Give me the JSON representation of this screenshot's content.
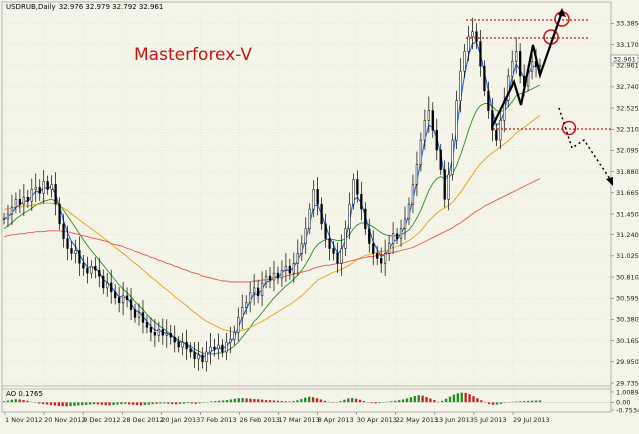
{
  "chart_data": [
    {
      "type": "candlestick",
      "title": "USDRUB,Daily",
      "ohlc_readout": "32.976 32.979 32.792 32.961",
      "watermark": "Masterforex-V",
      "current_price": "32.961",
      "y_ticks": [
        "33.385",
        "33.170",
        "32.961",
        "32.740",
        "32.525",
        "32.310",
        "32.095",
        "31.880",
        "31.665",
        "31.450",
        "31.240",
        "31.025",
        "30.810",
        "30.595",
        "30.380",
        "30.165",
        "29.950",
        "29.735"
      ],
      "ylim": [
        29.735,
        33.5
      ],
      "x_ticks": [
        "1 Nov 2012",
        "20 Nov 2012",
        "9 Dec 2012",
        "28 Dec 2012",
        "20 Jan 2013",
        "7 Feb 2013",
        "26 Feb 2013",
        "17 Mar 2013",
        "8 Apr 2013",
        "30 Apr 2013",
        "22 May 2013",
        "13 Jun 2013",
        "5 Jul 2013",
        "29 Jul 2013"
      ],
      "series": [
        {
          "kind": "price",
          "color": "#000000",
          "values": [
            31.4,
            31.45,
            31.52,
            31.6,
            31.55,
            31.62,
            31.58,
            31.7,
            31.72,
            31.66,
            31.78,
            31.7,
            31.75,
            31.55,
            31.35,
            31.2,
            31.1,
            31.05,
            31.08,
            30.95,
            30.9,
            30.85,
            30.92,
            30.88,
            30.82,
            30.7,
            30.75,
            30.66,
            30.6,
            30.55,
            30.62,
            30.58,
            30.48,
            30.4,
            30.45,
            30.35,
            30.3,
            30.25,
            30.22,
            30.28,
            30.22,
            30.24,
            30.2,
            30.15,
            30.1,
            30.15,
            30.08,
            30.05,
            29.98,
            30.02,
            29.95,
            30.05,
            30.1,
            30.08,
            30.12,
            30.05,
            30.15,
            30.18,
            30.25,
            30.4,
            30.5,
            30.55,
            30.65,
            30.7,
            30.62,
            30.75,
            30.82,
            30.78,
            30.85,
            30.8,
            30.88,
            30.92,
            30.85,
            30.95,
            31.05,
            31.15,
            31.3,
            31.5,
            31.7,
            31.55,
            31.35,
            31.2,
            31.1,
            31.05,
            30.95,
            31.1,
            31.3,
            31.55,
            31.8,
            31.65,
            31.5,
            31.3,
            31.15,
            31.05,
            31.0,
            30.95,
            31.05,
            31.15,
            31.25,
            31.2,
            31.3,
            31.4,
            31.55,
            31.75,
            31.95,
            32.2,
            32.4,
            32.5,
            32.3,
            32.1,
            31.9,
            31.6,
            31.85,
            32.2,
            32.6,
            32.9,
            33.1,
            33.25,
            33.3,
            33.2,
            32.95,
            32.7,
            32.5,
            32.3,
            32.2,
            32.4,
            32.6,
            32.85,
            33.0,
            33.1,
            32.85,
            32.75,
            32.9,
            33.0,
            32.95,
            32.96
          ]
        },
        {
          "kind": "ema-fast",
          "color": "#1e64dc",
          "values": [
            31.4,
            31.42,
            31.46,
            31.52,
            31.54,
            31.58,
            31.58,
            31.63,
            31.68,
            31.67,
            31.72,
            31.71,
            31.73,
            31.65,
            31.52,
            31.38,
            31.26,
            31.17,
            31.12,
            31.04,
            30.97,
            30.91,
            30.91,
            30.9,
            30.86,
            30.78,
            30.76,
            30.71,
            30.66,
            30.61,
            30.61,
            30.6,
            30.54,
            30.47,
            30.46,
            30.41,
            30.36,
            30.31,
            30.27,
            30.27,
            30.25,
            30.24,
            30.22,
            30.19,
            30.15,
            30.15,
            30.12,
            30.09,
            30.04,
            30.03,
            29.99,
            30.02,
            30.06,
            30.07,
            30.1,
            30.08,
            30.11,
            30.15,
            30.2,
            30.3,
            30.4,
            30.48,
            30.57,
            30.64,
            30.63,
            30.69,
            30.76,
            30.77,
            30.81,
            30.81,
            30.85,
            30.89,
            30.87,
            30.91,
            30.98,
            31.07,
            31.19,
            31.35,
            31.53,
            31.54,
            31.45,
            31.33,
            31.22,
            31.14,
            31.05,
            31.08,
            31.19,
            31.37,
            31.59,
            31.62,
            31.56,
            31.43,
            31.29,
            31.17,
            31.09,
            31.02,
            31.04,
            31.09,
            31.17,
            31.19,
            31.25,
            31.33,
            31.44,
            31.6,
            31.78,
            31.99,
            32.2,
            32.35,
            32.33,
            32.22,
            32.06,
            31.83,
            31.84,
            32.02,
            32.31,
            32.61,
            32.86,
            33.06,
            33.18,
            33.19,
            33.07,
            32.89,
            32.7,
            32.5,
            32.35,
            32.38,
            32.49,
            32.67,
            32.84,
            32.97,
            32.91,
            32.83,
            32.87,
            32.94,
            32.95,
            32.96
          ]
        },
        {
          "kind": "ma-green",
          "color": "#2a8a2a",
          "values": [
            31.3,
            31.33,
            31.36,
            31.4,
            31.43,
            31.46,
            31.48,
            31.51,
            31.54,
            31.56,
            31.58,
            31.59,
            31.6,
            31.58,
            31.54,
            31.49,
            31.43,
            31.37,
            31.31,
            31.25,
            31.19,
            31.13,
            31.08,
            31.03,
            30.98,
            30.93,
            30.88,
            30.83,
            30.78,
            30.73,
            30.69,
            30.65,
            30.61,
            30.56,
            30.52,
            30.48,
            30.43,
            30.39,
            30.35,
            30.32,
            30.29,
            30.26,
            30.23,
            30.2,
            30.17,
            30.15,
            30.13,
            30.11,
            30.08,
            30.06,
            30.04,
            30.03,
            30.03,
            30.03,
            30.04,
            30.04,
            30.06,
            30.08,
            30.11,
            30.15,
            30.2,
            30.25,
            30.3,
            30.36,
            30.4,
            30.45,
            30.5,
            30.55,
            30.6,
            30.64,
            30.68,
            30.72,
            30.75,
            30.79,
            30.83,
            30.88,
            30.94,
            31.01,
            31.09,
            31.14,
            31.17,
            31.19,
            31.19,
            31.19,
            31.18,
            31.18,
            31.2,
            31.24,
            31.3,
            31.34,
            31.36,
            31.36,
            31.34,
            31.32,
            31.29,
            31.26,
            31.24,
            31.23,
            31.23,
            31.23,
            31.24,
            31.26,
            31.29,
            31.34,
            31.41,
            31.49,
            31.59,
            31.69,
            31.76,
            31.81,
            31.83,
            31.81,
            31.82,
            31.86,
            31.94,
            32.05,
            32.17,
            32.3,
            32.41,
            32.5,
            32.55,
            32.57,
            32.57,
            32.54,
            32.5,
            32.49,
            32.5,
            32.54,
            32.59,
            32.65,
            32.67,
            32.68,
            32.7,
            32.72,
            32.74,
            32.76
          ]
        },
        {
          "kind": "ma-orange",
          "color": "#e8a010",
          "values": [
            31.5,
            31.5,
            31.51,
            31.52,
            31.52,
            31.53,
            31.53,
            31.54,
            31.55,
            31.55,
            31.56,
            31.56,
            31.56,
            31.55,
            31.53,
            31.51,
            31.48,
            31.45,
            31.42,
            31.39,
            31.36,
            31.33,
            31.3,
            31.27,
            31.24,
            31.21,
            31.18,
            31.15,
            31.11,
            31.08,
            31.05,
            31.02,
            30.98,
            30.95,
            30.92,
            30.88,
            30.85,
            30.81,
            30.78,
            30.75,
            30.71,
            30.68,
            30.65,
            30.61,
            30.58,
            30.55,
            30.52,
            30.48,
            30.45,
            30.42,
            30.39,
            30.36,
            30.34,
            30.32,
            30.3,
            30.28,
            30.27,
            30.26,
            30.26,
            30.26,
            30.27,
            30.28,
            30.3,
            30.32,
            30.34,
            30.36,
            30.38,
            30.41,
            30.43,
            30.46,
            30.48,
            30.51,
            30.53,
            30.56,
            30.59,
            30.62,
            30.66,
            30.7,
            30.74,
            30.78,
            30.8,
            30.82,
            30.84,
            30.86,
            30.87,
            30.89,
            30.91,
            30.93,
            30.96,
            30.99,
            31.01,
            31.03,
            31.04,
            31.05,
            31.06,
            31.07,
            31.08,
            31.09,
            31.11,
            31.12,
            31.14,
            31.16,
            31.18,
            31.21,
            31.24,
            31.28,
            31.33,
            31.38,
            31.42,
            31.46,
            31.49,
            31.51,
            31.54,
            31.57,
            31.62,
            31.67,
            31.73,
            31.79,
            31.85,
            31.91,
            31.96,
            32.0,
            32.04,
            32.07,
            32.1,
            32.13,
            32.16,
            32.19,
            32.23,
            32.27,
            32.3,
            32.33,
            32.36,
            32.39,
            32.42,
            32.45
          ]
        },
        {
          "kind": "ma-red",
          "color": "#e0584a",
          "values": [
            31.22,
            31.23,
            31.24,
            31.24,
            31.25,
            31.25,
            31.26,
            31.26,
            31.27,
            31.27,
            31.27,
            31.28,
            31.28,
            31.28,
            31.28,
            31.27,
            31.27,
            31.26,
            31.25,
            31.24,
            31.23,
            31.22,
            31.21,
            31.2,
            31.19,
            31.18,
            31.17,
            31.15,
            31.14,
            31.13,
            31.12,
            31.1,
            31.09,
            31.07,
            31.06,
            31.04,
            31.03,
            31.01,
            31.0,
            30.98,
            30.97,
            30.95,
            30.94,
            30.92,
            30.91,
            30.89,
            30.88,
            30.86,
            30.85,
            30.84,
            30.82,
            30.81,
            30.8,
            30.79,
            30.78,
            30.77,
            30.77,
            30.76,
            30.76,
            30.76,
            30.76,
            30.76,
            30.76,
            30.77,
            30.77,
            30.78,
            30.78,
            30.79,
            30.8,
            30.81,
            30.81,
            30.82,
            30.83,
            30.84,
            30.85,
            30.86,
            30.87,
            30.88,
            30.9,
            30.91,
            30.92,
            30.93,
            30.93,
            30.94,
            30.95,
            30.95,
            30.96,
            30.97,
            30.98,
            30.99,
            31.0,
            31.01,
            31.02,
            31.02,
            31.03,
            31.04,
            31.04,
            31.05,
            31.06,
            31.07,
            31.08,
            31.09,
            31.1,
            31.11,
            31.13,
            31.15,
            31.17,
            31.19,
            31.21,
            31.23,
            31.25,
            31.27,
            31.29,
            31.31,
            31.34,
            31.36,
            31.39,
            31.42,
            31.45,
            31.48,
            31.5,
            31.53,
            31.55,
            31.57,
            31.59,
            31.61,
            31.63,
            31.65,
            31.67,
            31.69,
            31.71,
            31.73,
            31.75,
            31.77,
            31.79,
            31.81
          ]
        }
      ]
    },
    {
      "type": "bar",
      "title": "AO 0.1765",
      "y_ticks": [
        "1.0089",
        "0.00",
        "-0.7534"
      ],
      "ylim": [
        -0.7534,
        1.0089
      ],
      "values": [
        0.1,
        0.18,
        0.25,
        0.3,
        0.28,
        0.22,
        0.15,
        0.05,
        -0.05,
        -0.12,
        -0.18,
        -0.22,
        -0.28,
        -0.32,
        -0.35,
        -0.38,
        -0.4,
        -0.38,
        -0.35,
        -0.3,
        -0.28,
        -0.25,
        -0.22,
        -0.18,
        -0.2,
        -0.24,
        -0.28,
        -0.3,
        -0.27,
        -0.22,
        -0.18,
        -0.15,
        -0.2,
        -0.25,
        -0.28,
        -0.3,
        -0.26,
        -0.22,
        -0.18,
        -0.15,
        -0.12,
        -0.1,
        -0.14,
        -0.18,
        -0.2,
        -0.16,
        -0.12,
        -0.08,
        -0.12,
        -0.15,
        -0.1,
        -0.05,
        0.02,
        0.08,
        0.12,
        0.15,
        0.18,
        0.22,
        0.28,
        0.35,
        0.4,
        0.42,
        0.38,
        0.35,
        0.32,
        0.3,
        0.26,
        0.22,
        0.2,
        0.18,
        0.15,
        0.12,
        0.1,
        0.08,
        0.12,
        0.2,
        0.32,
        0.45,
        0.55,
        0.5,
        0.4,
        0.28,
        0.15,
        0.05,
        -0.05,
        0.02,
        0.12,
        0.25,
        0.38,
        0.42,
        0.35,
        0.25,
        0.12,
        0.02,
        -0.08,
        -0.12,
        -0.08,
        -0.02,
        0.05,
        0.1,
        0.15,
        0.2,
        0.28,
        0.38,
        0.5,
        0.62,
        0.7,
        0.65,
        0.52,
        0.38,
        0.22,
        0.05,
        0.15,
        0.35,
        0.55,
        0.75,
        0.88,
        0.95,
        0.92,
        0.8,
        0.6,
        0.4,
        0.2,
        0.0,
        -0.18,
        -0.25,
        -0.22,
        -0.15,
        -0.05,
        0.02,
        0.05,
        0.08,
        0.1,
        0.12,
        0.14,
        0.16,
        0.17,
        0.18
      ],
      "up_color": "#1b8f1b",
      "down_color": "#cc2020"
    }
  ]
}
